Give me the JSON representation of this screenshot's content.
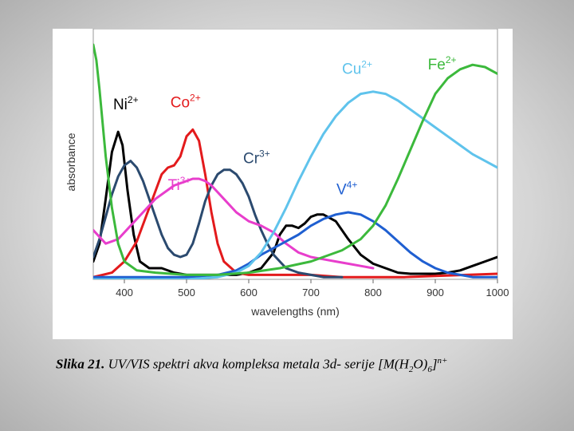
{
  "chart_data": {
    "type": "line",
    "title": "",
    "xlabel": "wavelengths (nm)",
    "ylabel": "absorbance",
    "xlim": [
      350,
      1000
    ],
    "ylim": [
      0,
      1
    ],
    "xticks": [
      400,
      500,
      600,
      700,
      800,
      900,
      1000
    ],
    "series": [
      {
        "name": "Ni",
        "charge": "2+",
        "color": "#000000",
        "x": [
          350,
          360,
          370,
          380,
          390,
          397,
          405,
          415,
          425,
          440,
          460,
          480,
          500,
          520,
          540,
          560,
          580,
          600,
          620,
          640,
          650,
          660,
          670,
          680,
          690,
          700,
          710,
          720,
          740,
          760,
          780,
          800,
          820,
          840,
          860,
          880,
          900,
          920,
          940,
          960,
          980,
          1000
        ],
        "y": [
          0.08,
          0.16,
          0.36,
          0.57,
          0.66,
          0.6,
          0.4,
          0.2,
          0.08,
          0.05,
          0.05,
          0.03,
          0.02,
          0.02,
          0.02,
          0.02,
          0.02,
          0.03,
          0.05,
          0.12,
          0.2,
          0.24,
          0.24,
          0.23,
          0.25,
          0.28,
          0.29,
          0.29,
          0.26,
          0.18,
          0.11,
          0.07,
          0.05,
          0.03,
          0.025,
          0.025,
          0.025,
          0.03,
          0.04,
          0.06,
          0.08,
          0.1
        ]
      },
      {
        "name": "Co",
        "charge": "2+",
        "color": "#e31a1c",
        "x": [
          350,
          380,
          400,
          420,
          440,
          460,
          470,
          480,
          490,
          500,
          510,
          520,
          530,
          540,
          550,
          560,
          580,
          600,
          650,
          700,
          750,
          800,
          850,
          900,
          950,
          1000
        ],
        "y": [
          0.01,
          0.03,
          0.08,
          0.17,
          0.32,
          0.47,
          0.5,
          0.51,
          0.55,
          0.64,
          0.67,
          0.62,
          0.47,
          0.3,
          0.16,
          0.08,
          0.03,
          0.02,
          0.02,
          0.02,
          0.01,
          0.01,
          0.01,
          0.015,
          0.02,
          0.025
        ]
      },
      {
        "name": "Cr",
        "charge": "3+",
        "color": "#2b4a6f",
        "x": [
          350,
          360,
          370,
          380,
          390,
          400,
          410,
          420,
          430,
          440,
          450,
          460,
          470,
          480,
          490,
          500,
          510,
          520,
          530,
          540,
          550,
          560,
          570,
          580,
          590,
          600,
          610,
          620,
          630,
          640,
          650,
          660,
          680,
          700,
          720,
          750
        ],
        "y": [
          0.1,
          0.18,
          0.28,
          0.38,
          0.46,
          0.51,
          0.53,
          0.5,
          0.44,
          0.36,
          0.28,
          0.2,
          0.14,
          0.11,
          0.1,
          0.11,
          0.16,
          0.25,
          0.35,
          0.42,
          0.47,
          0.49,
          0.49,
          0.47,
          0.43,
          0.37,
          0.29,
          0.22,
          0.16,
          0.11,
          0.08,
          0.05,
          0.03,
          0.02,
          0.01,
          0.01
        ]
      },
      {
        "name": "Ti",
        "charge": "3+",
        "color": "#e83ecc",
        "x": [
          350,
          370,
          390,
          410,
          430,
          450,
          470,
          480,
          490,
          500,
          510,
          520,
          530,
          540,
          560,
          580,
          600,
          620,
          640,
          660,
          680,
          700,
          720,
          740,
          760,
          780,
          800
        ],
        "y": [
          0.22,
          0.16,
          0.18,
          0.24,
          0.3,
          0.36,
          0.4,
          0.42,
          0.43,
          0.44,
          0.45,
          0.45,
          0.44,
          0.42,
          0.36,
          0.3,
          0.26,
          0.24,
          0.21,
          0.16,
          0.12,
          0.1,
          0.09,
          0.08,
          0.07,
          0.06,
          0.05
        ]
      },
      {
        "name": "V",
        "charge": "4+",
        "color": "#1f5fd1",
        "x": [
          350,
          400,
          450,
          500,
          550,
          580,
          600,
          620,
          640,
          660,
          680,
          700,
          720,
          740,
          760,
          780,
          800,
          820,
          840,
          860,
          880,
          900,
          920,
          940,
          960,
          1000
        ],
        "y": [
          0.01,
          0.01,
          0.01,
          0.01,
          0.02,
          0.04,
          0.07,
          0.11,
          0.14,
          0.17,
          0.2,
          0.24,
          0.27,
          0.29,
          0.3,
          0.29,
          0.26,
          0.22,
          0.17,
          0.12,
          0.08,
          0.05,
          0.03,
          0.02,
          0.01,
          0.01
        ]
      },
      {
        "name": "Cu",
        "charge": "2+",
        "color": "#5fc3ec",
        "x": [
          350,
          400,
          450,
          500,
          550,
          580,
          600,
          620,
          640,
          660,
          680,
          700,
          720,
          740,
          760,
          780,
          800,
          820,
          840,
          860,
          880,
          900,
          920,
          940,
          960,
          980,
          1000
        ],
        "y": [
          0.0,
          0.0,
          0.0,
          0.0,
          0.01,
          0.03,
          0.06,
          0.12,
          0.21,
          0.32,
          0.44,
          0.55,
          0.65,
          0.73,
          0.79,
          0.83,
          0.84,
          0.83,
          0.8,
          0.76,
          0.72,
          0.68,
          0.64,
          0.6,
          0.56,
          0.53,
          0.5
        ]
      },
      {
        "name": "Fe",
        "charge": "2+",
        "color": "#3cb93c",
        "x": [
          350,
          355,
          360,
          365,
          370,
          380,
          390,
          400,
          420,
          450,
          500,
          550,
          600,
          650,
          700,
          750,
          780,
          800,
          820,
          840,
          860,
          880,
          900,
          920,
          940,
          960,
          980,
          1000
        ],
        "y": [
          1.05,
          0.98,
          0.85,
          0.7,
          0.55,
          0.32,
          0.16,
          0.08,
          0.04,
          0.03,
          0.02,
          0.02,
          0.03,
          0.05,
          0.08,
          0.13,
          0.18,
          0.24,
          0.33,
          0.45,
          0.58,
          0.71,
          0.83,
          0.9,
          0.94,
          0.96,
          0.95,
          0.92
        ]
      }
    ],
    "labels": [
      {
        "text": "Ni",
        "sup": "2+",
        "color": "#000000",
        "x": 382,
        "y": 0.76
      },
      {
        "text": "Co",
        "sup": "2+",
        "color": "#e31a1c",
        "x": 474,
        "y": 0.77
      },
      {
        "text": "Cr",
        "sup": "3+",
        "color": "#2b4a6f",
        "x": 591,
        "y": 0.52
      },
      {
        "text": "Ti",
        "sup": "3+",
        "color": "#e83ecc",
        "x": 470,
        "y": 0.4
      },
      {
        "text": "V",
        "sup": "4+",
        "color": "#1f5fd1",
        "x": 741,
        "y": 0.38
      },
      {
        "text": "Cu",
        "sup": "2+",
        "color": "#5fc3ec",
        "x": 750,
        "y": 0.92
      },
      {
        "text": "Fe",
        "sup": "2+",
        "color": "#3cb93c",
        "x": 888,
        "y": 0.94
      }
    ]
  },
  "caption": {
    "lead": "Slika 21.",
    "text_before_sub": " UV/VIS spektri akva kompleksa metala 3d- serije [M(H",
    "sub1": "2",
    "text_mid": "O)",
    "sub2": "6",
    "text_after": "]",
    "sup": "n+"
  }
}
